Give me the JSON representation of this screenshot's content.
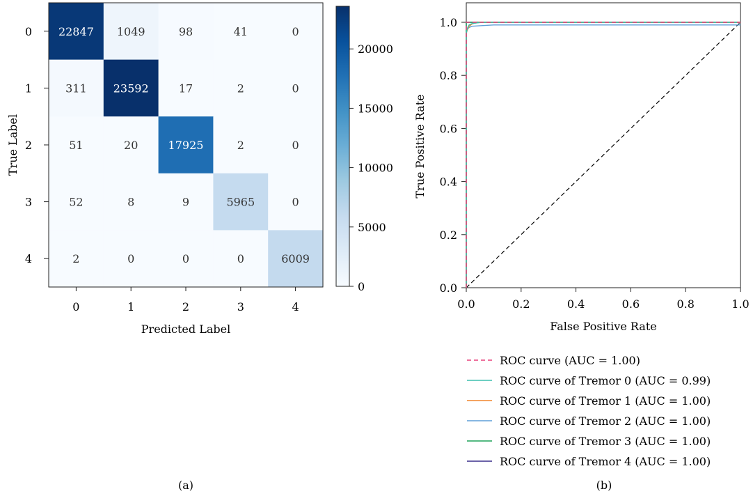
{
  "panels": [
    {
      "caption": "(a)"
    },
    {
      "caption": "(b)"
    }
  ],
  "chart_data": [
    {
      "type": "heatmap",
      "title": "",
      "xlabel": "Predicted Label",
      "ylabel": "True Label",
      "x_categories": [
        "0",
        "1",
        "2",
        "3",
        "4"
      ],
      "y_categories": [
        "0",
        "1",
        "2",
        "3",
        "4"
      ],
      "values": [
        [
          22847,
          1049,
          98,
          41,
          0
        ],
        [
          311,
          23592,
          17,
          2,
          0
        ],
        [
          51,
          20,
          17925,
          2,
          0
        ],
        [
          52,
          8,
          9,
          5965,
          0
        ],
        [
          2,
          0,
          0,
          0,
          6009
        ]
      ],
      "colorbar": {
        "min": 0,
        "max": 23592,
        "ticks": [
          0,
          5000,
          10000,
          15000,
          20000
        ],
        "colormap": "Blues"
      },
      "text_colors": {
        "light": "#ffffff",
        "dark": "#333333"
      }
    },
    {
      "type": "line",
      "title": "",
      "xlabel": "False Positive Rate",
      "ylabel": "True Positive Rate",
      "xlim": [
        0,
        1
      ],
      "ylim": [
        0,
        1.02
      ],
      "xticks": [
        "0.0",
        "0.2",
        "0.4",
        "0.6",
        "0.8",
        "1.0"
      ],
      "yticks": [
        "0.0",
        "0.2",
        "0.4",
        "0.6",
        "0.8",
        "1.0"
      ],
      "legend_placement": "below",
      "series": [
        {
          "name": "ROC curve (AUC = 1.00)",
          "color": "#e8427c",
          "dash": true,
          "x": [
            0,
            0,
            1
          ],
          "y": [
            0,
            1.0,
            1.0
          ]
        },
        {
          "name": "ROC curve of Tremor 0 (AUC = 0.99)",
          "color": "#3dbfae",
          "dash": false,
          "x": [
            0,
            0,
            0.002,
            0.005,
            0.01,
            0.02,
            0.04,
            0.06,
            1
          ],
          "y": [
            0,
            0.95,
            0.97,
            0.98,
            0.99,
            0.995,
            0.998,
            1.0,
            1.0
          ]
        },
        {
          "name": "ROC curve of Tremor 1 (AUC = 1.00)",
          "color": "#f0852d",
          "dash": false,
          "x": [
            0,
            0,
            0.005,
            0.01,
            0.02,
            0.03,
            0.05,
            1
          ],
          "y": [
            0,
            0.96,
            0.975,
            0.985,
            0.993,
            0.997,
            1.0,
            1.0
          ]
        },
        {
          "name": "ROC curve of Tremor 2 (AUC = 1.00)",
          "color": "#5f9fd9",
          "dash": false,
          "x": [
            0,
            0,
            0.005,
            0.01,
            0.02,
            0.05,
            0.1,
            1
          ],
          "y": [
            0,
            0.96,
            0.975,
            0.98,
            0.985,
            0.987,
            0.99,
            0.99
          ]
        },
        {
          "name": "ROC curve of Tremor 3 (AUC = 1.00)",
          "color": "#1ea35a",
          "dash": false,
          "x": [
            0,
            0,
            1
          ],
          "y": [
            0,
            1.0,
            1.0
          ]
        },
        {
          "name": "ROC curve of Tremor 4 (AUC = 1.00)",
          "color": "#3a2f8c",
          "dash": false,
          "x": [
            0,
            0,
            1
          ],
          "y": [
            0,
            1.0,
            1.0
          ]
        }
      ],
      "reference_line": {
        "x": [
          0,
          1
        ],
        "y": [
          0,
          1
        ],
        "color": "#000000",
        "dash": true
      }
    }
  ]
}
